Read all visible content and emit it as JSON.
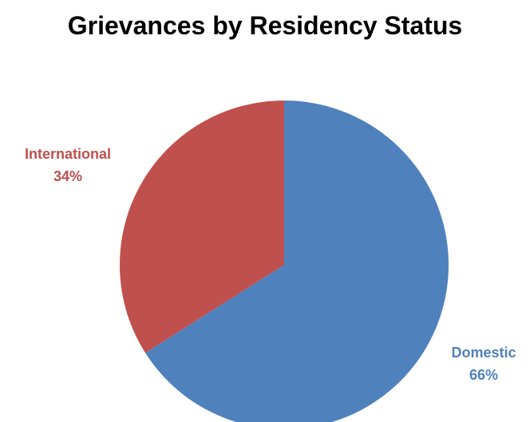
{
  "chart_data": {
    "type": "pie",
    "title": "Grievances by Residency Status",
    "slices": [
      {
        "label": "Domestic",
        "value": 66,
        "value_label": "66%",
        "color": "#4F81BD"
      },
      {
        "label": "International",
        "value": 34,
        "value_label": "34%",
        "color": "#C0504D"
      }
    ],
    "start_angle": "12 o'clock",
    "direction": "clockwise",
    "legend": "none",
    "data_labels": "outside, colored by slice"
  }
}
